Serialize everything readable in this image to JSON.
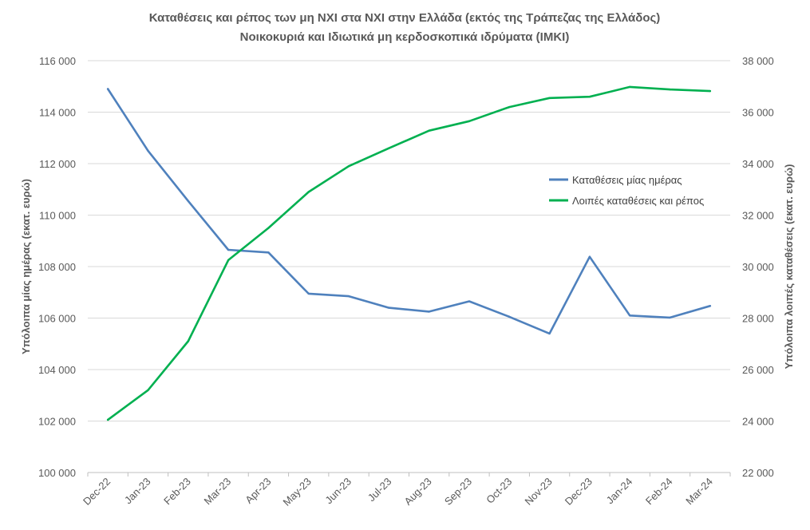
{
  "chart_data": {
    "type": "line",
    "title": "Καταθέσεις και ρέπος των μη ΝΧΙ στα ΝΧΙ στην Ελλάδα (εκτός της Τράπεζας της Ελλάδος)",
    "subtitle": "Νοικοκυριά και Ιδιωτικά μη κερδοσκοπικά ιδρύματα (ΙΜΚΙ)",
    "ylabel_left": "Υπόλοιπα μίας ημέρας (εκατ. ευρώ)",
    "ylabel_right": "Υπόλοιπα λοιπές καταθέσεις (εκατ. ευρώ)",
    "categories": [
      "Dec-22",
      "Jan-23",
      "Feb-23",
      "Mar-23",
      "Apr-23",
      "May-23",
      "Jun-23",
      "Jul-23",
      "Aug-23",
      "Sep-23",
      "Oct-23",
      "Nov-23",
      "Dec-23",
      "Jan-24",
      "Feb-24",
      "Mar-24"
    ],
    "ylim_left": [
      100000,
      116000
    ],
    "ylim_right": [
      22000,
      38000
    ],
    "yticks_left": [
      "100 000",
      "102 000",
      "104 000",
      "106 000",
      "108 000",
      "110 000",
      "112 000",
      "114 000",
      "116 000"
    ],
    "yticks_right": [
      "22 000",
      "24 000",
      "26 000",
      "28 000",
      "30 000",
      "32 000",
      "34 000",
      "36 000",
      "38 000"
    ],
    "grid": true,
    "legend_position": "right-middle",
    "series": [
      {
        "name": "Καταθέσεις μίας ημέρας",
        "axis": "left",
        "color": "#4f81bd",
        "values": [
          114900,
          112500,
          110550,
          108650,
          108550,
          106950,
          106850,
          106400,
          106250,
          106650,
          106050,
          105400,
          108380,
          106100,
          106020,
          106470
        ]
      },
      {
        "name": "Λοιπές καταθέσεις και ρέπος",
        "axis": "right",
        "color": "#00b050",
        "values": [
          24050,
          25200,
          27100,
          30250,
          31500,
          32900,
          33900,
          34600,
          35280,
          35650,
          36200,
          36550,
          36600,
          36980,
          36880,
          36820
        ]
      }
    ]
  }
}
